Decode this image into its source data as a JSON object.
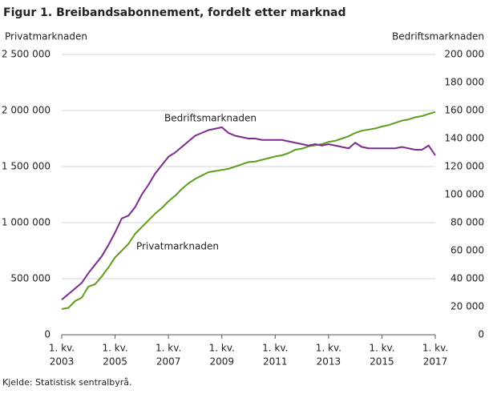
{
  "chart_data": {
    "type": "line",
    "title": "Figur 1. Breibandsabonnement, fordelt etter marknad",
    "y_label": "Privatmarknaden",
    "y2_label": "Bedriftsmarknaden",
    "source": "Kjelde: Statistisk sentralbyrå.",
    "annotations": [
      "Bedriftsmarknaden",
      "Privatmarknaden"
    ],
    "categories": [
      [
        "1. kv.",
        "2003"
      ],
      null,
      null,
      null,
      null,
      null,
      null,
      null,
      [
        "1. kv.",
        "2005"
      ],
      null,
      null,
      null,
      null,
      null,
      null,
      null,
      [
        "1. kv.",
        "2007"
      ],
      null,
      null,
      null,
      null,
      null,
      null,
      null,
      [
        "1. kv.",
        "2009"
      ],
      null,
      null,
      null,
      null,
      null,
      null,
      null,
      [
        "1. kv.",
        "2011"
      ],
      null,
      null,
      null,
      null,
      null,
      null,
      null,
      [
        "1. kv.",
        "2013"
      ],
      null,
      null,
      null,
      null,
      null,
      null,
      null,
      [
        "1. kv.",
        "2015"
      ],
      null,
      null,
      null,
      null,
      null,
      null,
      null,
      [
        "1. kv.",
        "2017"
      ]
    ],
    "series": [
      {
        "name": "Privatmarknaden",
        "color": "#5e9c1c",
        "axis": "y",
        "values": [
          229000,
          240000,
          300000,
          330000,
          430000,
          450000,
          520000,
          600000,
          690000,
          750000,
          810000,
          900000,
          960000,
          1020000,
          1080000,
          1130000,
          1190000,
          1240000,
          1300000,
          1350000,
          1390000,
          1420000,
          1450000,
          1460000,
          1470000,
          1480000,
          1500000,
          1520000,
          1540000,
          1545000,
          1560000,
          1575000,
          1590000,
          1600000,
          1620000,
          1650000,
          1660000,
          1680000,
          1690000,
          1700000,
          1720000,
          1730000,
          1750000,
          1770000,
          1800000,
          1820000,
          1830000,
          1840000,
          1857000,
          1870000,
          1890000,
          1910000,
          1920000,
          1940000,
          1950000,
          1970000,
          1986000
        ]
      },
      {
        "name": "Bedriftsmarknaden",
        "color": "#7b2b8c",
        "axis": "y2",
        "values": [
          25000,
          29000,
          33000,
          37000,
          44000,
          50000,
          56000,
          64000,
          73000,
          83000,
          85000,
          91000,
          100000,
          107000,
          115000,
          121000,
          127000,
          130000,
          134000,
          138000,
          142000,
          144000,
          146000,
          147000,
          148000,
          144000,
          142000,
          141000,
          140000,
          140000,
          139000,
          139000,
          139000,
          139000,
          138000,
          137000,
          136000,
          135000,
          136000,
          135000,
          136000,
          135000,
          134000,
          133000,
          137000,
          134000,
          133000,
          133000,
          133000,
          133000,
          133000,
          134000,
          133000,
          132000,
          132000,
          135000,
          128000
        ]
      }
    ],
    "ylim": [
      0,
      2500000
    ],
    "yticks": [
      0,
      {
        "value": 500000,
        "label": "500 000"
      },
      {
        "value": 1000000,
        "label": "1 000 000"
      },
      {
        "value": 1500000,
        "label": "1 500 000"
      },
      {
        "value": 2000000,
        "label": "2 000 000"
      },
      {
        "value": 2500000,
        "label": "2 500 000"
      }
    ],
    "y2lim": [
      0,
      200000
    ],
    "y2ticks": [
      0,
      {
        "value": 20000,
        "label": "20 000"
      },
      {
        "value": 40000,
        "label": "40 000"
      },
      {
        "value": 60000,
        "label": "60 000"
      },
      {
        "value": 80000,
        "label": "80 000"
      },
      {
        "value": 100000,
        "label": "100 000"
      },
      {
        "value": 120000,
        "label": "120 000"
      },
      {
        "value": 140000,
        "label": "140 000"
      },
      {
        "value": 160000,
        "label": "160 000"
      },
      {
        "value": 180000,
        "label": "180 000"
      },
      {
        "value": 200000,
        "label": "200 000"
      }
    ],
    "grid": true
  }
}
